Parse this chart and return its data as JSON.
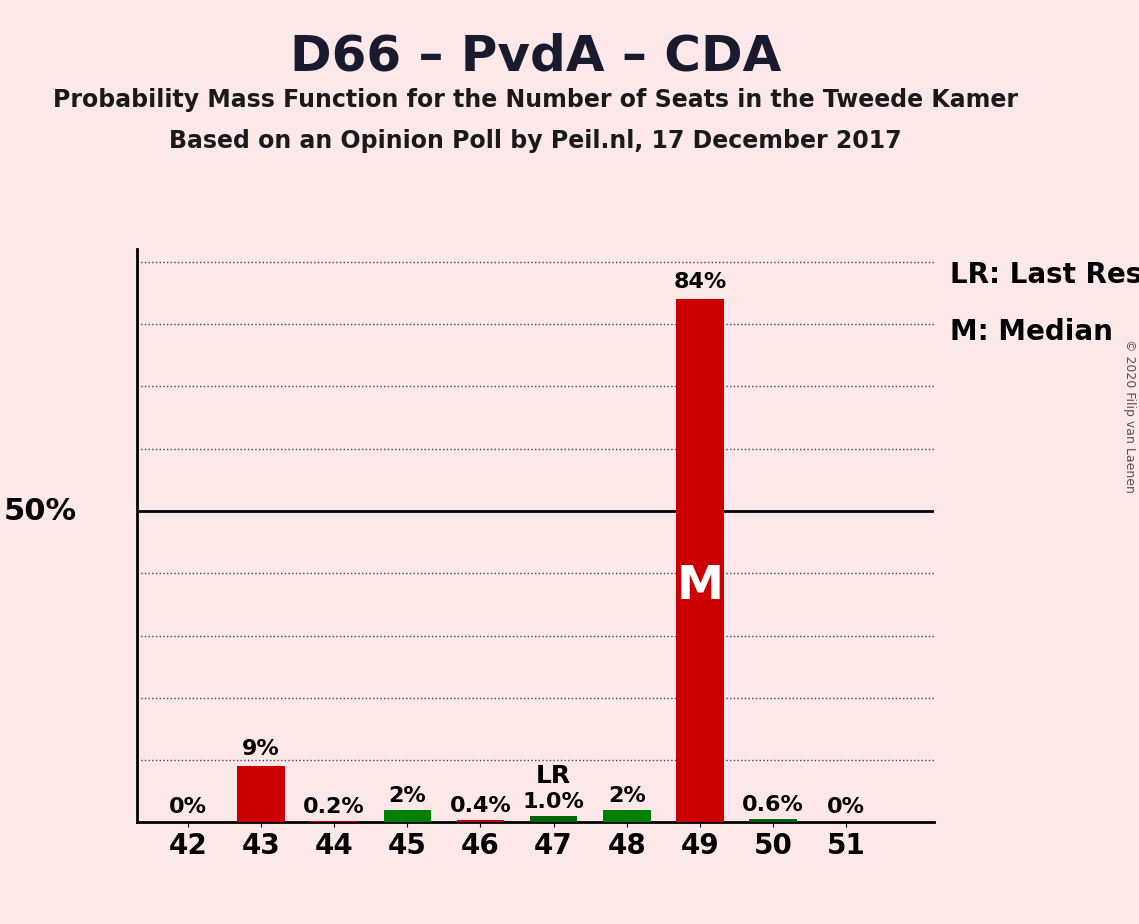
{
  "title": "D66 – PvdA – CDA",
  "subtitle1": "Probability Mass Function for the Number of Seats in the Tweede Kamer",
  "subtitle2": "Based on an Opinion Poll by Peil.nl, 17 December 2017",
  "copyright": "© 2020 Filip van Laenen",
  "categories": [
    42,
    43,
    44,
    45,
    46,
    47,
    48,
    49,
    50,
    51
  ],
  "values": [
    0.0,
    9.0,
    0.2,
    2.0,
    0.4,
    1.0,
    2.0,
    84.0,
    0.6,
    0.0
  ],
  "labels": [
    "0%",
    "9%",
    "0.2%",
    "2%",
    "0.4%",
    "1.0%",
    "2%",
    "84%",
    "0.6%",
    "0%"
  ],
  "colors": [
    "#cc0000",
    "#cc0000",
    "#cc0000",
    "#008000",
    "#cc0000",
    "#006600",
    "#008000",
    "#cc0000",
    "#006600",
    "#cc0000"
  ],
  "median_bar": 49,
  "lr_bar": 47,
  "lr_label": "LR",
  "median_label": "M",
  "legend_lr": "LR: Last Result",
  "legend_m": "M: Median",
  "ylabel_50": "50%",
  "background_color": "#fce8e8",
  "ylim": [
    0,
    92
  ],
  "bar_width": 0.65,
  "title_fontsize": 36,
  "subtitle_fontsize": 17,
  "label_fontsize": 16,
  "xtick_fontsize": 20,
  "legend_fontsize": 20,
  "ylabel_fontsize": 22
}
